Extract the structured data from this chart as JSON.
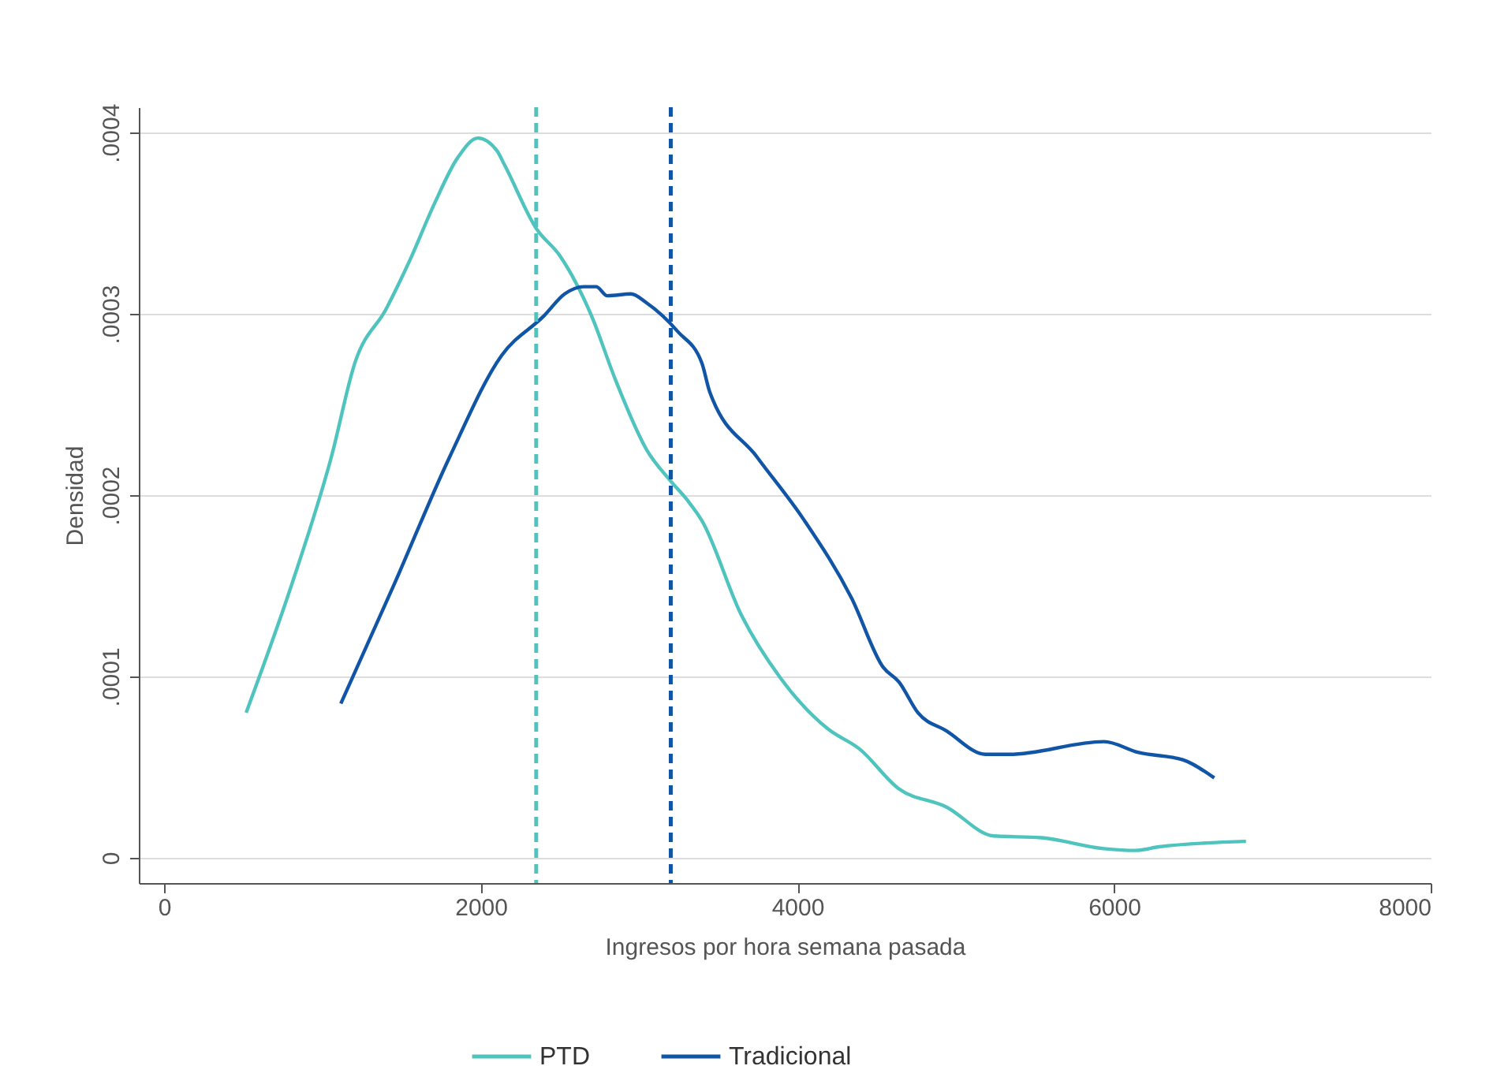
{
  "chart_data": {
    "type": "line",
    "xlabel": "Ingresos por hora semana pasada",
    "ylabel": "Densidad",
    "xlim": [
      -160,
      8000
    ],
    "xticks": [
      0,
      2000,
      4000,
      6000,
      8000
    ],
    "ylim": [
      -1.4e-05,
      0.000414
    ],
    "yticks": [
      {
        "value": 0,
        "label": "0"
      },
      {
        "value": 0.0001,
        "label": ".0001"
      },
      {
        "value": 0.0002,
        "label": ".0002"
      },
      {
        "value": 0.0003,
        "label": ".0003"
      },
      {
        "value": 0.0004,
        "label": ".0004"
      }
    ],
    "grid": "y",
    "legend": "bottom",
    "line_style": "solid",
    "series": [
      {
        "name": "PTD",
        "color": "#4fc4be",
        "x": [
          518,
          807,
          1056,
          1205,
          1404,
          1554,
          1703,
          1853,
          1982,
          2102,
          2151,
          2351,
          2500,
          2699,
          2849,
          3048,
          3197,
          3307,
          3396,
          3645,
          3894,
          4193,
          4392,
          4641,
          4940,
          5239,
          5538,
          5936,
          6135,
          6285,
          6833
        ],
        "values": [
          8e-05,
          0.000151,
          0.000221,
          0.000273,
          0.000303,
          0.00033,
          0.00036,
          0.000386,
          0.000397,
          0.00039,
          0.000382,
          0.000347,
          0.000332,
          0.000299,
          0.000264,
          0.000225,
          0.000208,
          0.000197,
          0.000186,
          0.000134,
          9.9e-05,
          7.1e-05,
          6e-05,
          3.8e-05,
          2.8e-05,
          1.2e-05,
          1.1e-05,
          5e-06,
          4e-06,
          6e-06,
          9e-06
        ]
      },
      {
        "name": "Tradicional",
        "color": "#1155a6",
        "x": [
          1116,
          1454,
          1803,
          2131,
          2400,
          2530,
          2649,
          2729,
          2799,
          2948,
          3048,
          3247,
          3396,
          3446,
          3745,
          4044,
          4343,
          4542,
          4641,
          4761,
          4940,
          5189,
          5339,
          5936,
          6155,
          6434,
          6633
        ],
        "values": [
          8.5e-05,
          0.000151,
          0.000221,
          0.000277,
          0.000299,
          0.000311,
          0.000315,
          0.000315,
          0.00031,
          0.000311,
          0.000306,
          0.00029,
          0.000273,
          0.000257,
          0.000221,
          0.000186,
          0.000143,
          0.000105,
          9.7e-05,
          8e-05,
          7e-05,
          5.7e-05,
          5.7e-05,
          6.4e-05,
          5.8e-05,
          5.4e-05,
          4.4e-05
        ]
      }
    ],
    "ref_lines": [
      {
        "axis": "x",
        "value": 2350,
        "color": "#4fc4be",
        "line_style": "dashed"
      },
      {
        "axis": "x",
        "value": 3200,
        "color": "#1155a6",
        "line_style": "dashed"
      }
    ]
  }
}
